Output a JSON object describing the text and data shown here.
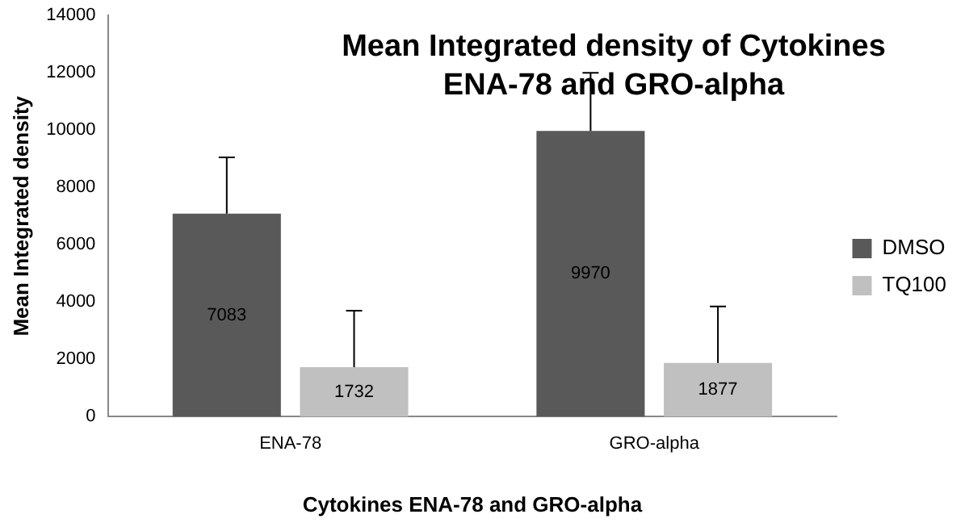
{
  "chart_data": {
    "type": "bar",
    "title": "Mean Integrated density of Cytokines ENA-78 and GRO-alpha",
    "xlabel": "Cytokines ENA-78 and GRO-alpha",
    "ylabel": "Mean Integrated density",
    "categories": [
      "ENA-78",
      "GRO-alpha"
    ],
    "series": [
      {
        "name": "DMSO",
        "color": "#595959",
        "values": [
          7083,
          9970
        ],
        "errors": [
          [
            7083,
            9050
          ],
          [
            9970,
            12000
          ]
        ]
      },
      {
        "name": "TQ100",
        "color": "#c0c0c0",
        "values": [
          1732,
          1877
        ],
        "errors": [
          [
            1732,
            3700
          ],
          [
            1877,
            3850
          ]
        ]
      }
    ],
    "ylim": [
      0,
      14000
    ],
    "yticks": [
      0,
      2000,
      4000,
      6000,
      8000,
      10000,
      12000,
      14000
    ],
    "grid": false,
    "legend": "right",
    "data_labels": true
  }
}
